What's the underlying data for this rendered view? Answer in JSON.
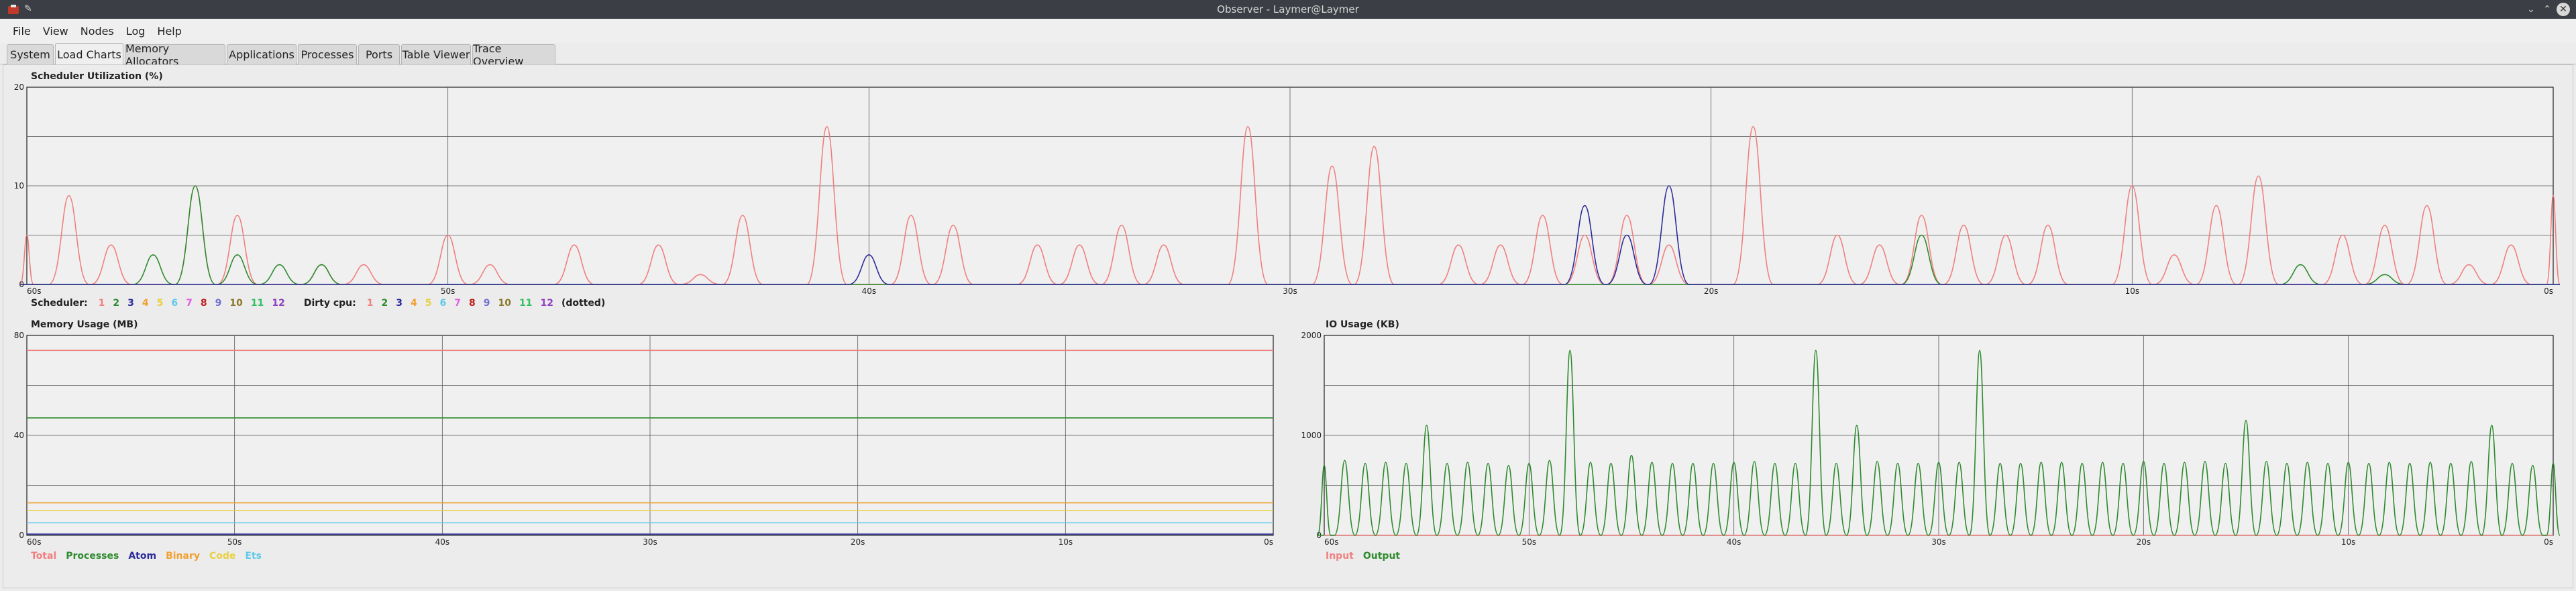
{
  "window": {
    "title": "Observer - Laymer@Laymer"
  },
  "menu": [
    "File",
    "View",
    "Nodes",
    "Log",
    "Help"
  ],
  "tabs": [
    "System",
    "Load Charts",
    "Memory Allocators",
    "Applications",
    "Processes",
    "Ports",
    "Table Viewer",
    "Trace Overview"
  ],
  "active_tab": "Load Charts",
  "scheduler_legend": {
    "label": "Scheduler:",
    "items": [
      {
        "n": "1",
        "color": "#f08080"
      },
      {
        "n": "2",
        "color": "#2e8b2e"
      },
      {
        "n": "3",
        "color": "#2b2b9a"
      },
      {
        "n": "4",
        "color": "#f0a030"
      },
      {
        "n": "5",
        "color": "#e8d040"
      },
      {
        "n": "6",
        "color": "#60c8e8"
      },
      {
        "n": "7",
        "color": "#e060e0"
      },
      {
        "n": "8",
        "color": "#c02020"
      },
      {
        "n": "9",
        "color": "#7070d0"
      },
      {
        "n": "10",
        "color": "#8c7a2a"
      },
      {
        "n": "11",
        "color": "#30c060"
      },
      {
        "n": "12",
        "color": "#9040c0"
      }
    ],
    "dirty_label": "Dirty cpu:",
    "dirty_items": [
      {
        "n": "1",
        "color": "#f08080"
      },
      {
        "n": "2",
        "color": "#2e8b2e"
      },
      {
        "n": "3",
        "color": "#2b2b9a"
      },
      {
        "n": "4",
        "color": "#f0a030"
      },
      {
        "n": "5",
        "color": "#e8d040"
      },
      {
        "n": "6",
        "color": "#60c8e8"
      },
      {
        "n": "7",
        "color": "#e060e0"
      },
      {
        "n": "8",
        "color": "#c02020"
      },
      {
        "n": "9",
        "color": "#7070d0"
      },
      {
        "n": "10",
        "color": "#8c7a2a"
      },
      {
        "n": "11",
        "color": "#30c060"
      },
      {
        "n": "12",
        "color": "#9040c0"
      }
    ],
    "dotted_note": "(dotted)"
  },
  "memory_legend": [
    {
      "label": "Total",
      "color": "#f08080"
    },
    {
      "label": "Processes",
      "color": "#2e8b2e"
    },
    {
      "label": "Atom",
      "color": "#2b2b9a"
    },
    {
      "label": "Binary",
      "color": "#f0a030"
    },
    {
      "label": "Code",
      "color": "#e8d040"
    },
    {
      "label": "Ets",
      "color": "#60c8e8"
    }
  ],
  "io_legend": [
    {
      "label": "Input",
      "color": "#f08080"
    },
    {
      "label": "Output",
      "color": "#2e8b2e"
    }
  ],
  "chart_data": [
    {
      "type": "line",
      "title": "Scheduler Utilization (%)",
      "ylim": [
        0,
        20
      ],
      "yticks": [
        "20",
        "10",
        "0"
      ],
      "xticks": [
        "60s",
        "50s",
        "40s",
        "30s",
        "20s",
        "10s",
        "0s"
      ],
      "grid": true,
      "series": [
        {
          "name": "1",
          "color": "#f08080",
          "x": [
            60,
            59,
            58,
            57,
            56,
            55,
            54,
            53,
            52,
            51,
            50,
            49,
            48,
            47,
            46,
            45,
            44,
            43,
            42,
            41,
            40,
            39,
            38,
            37,
            36,
            35,
            34,
            33,
            32,
            31,
            30,
            29,
            28,
            27,
            26,
            25,
            24,
            23,
            22,
            21,
            20,
            19,
            18,
            17,
            16,
            15,
            14,
            13,
            12,
            11,
            10,
            9,
            8,
            7,
            6,
            5,
            4,
            3,
            2,
            1,
            0
          ],
          "y": [
            5,
            9,
            4,
            0,
            10,
            7,
            0,
            2,
            2,
            0,
            5,
            2,
            0,
            4,
            0,
            4,
            1,
            7,
            0,
            16,
            0,
            7,
            6,
            0,
            4,
            4,
            6,
            4,
            0,
            16,
            0,
            12,
            14,
            0,
            4,
            4,
            7,
            5,
            7,
            4,
            0,
            16,
            0,
            5,
            4,
            7,
            6,
            5,
            6,
            0,
            10,
            3,
            8,
            11,
            0,
            5,
            6,
            8,
            2,
            4,
            9
          ]
        },
        {
          "name": "2",
          "color": "#2e8b2e",
          "x": [
            60,
            57,
            56,
            55,
            54,
            53,
            52,
            50,
            45,
            44,
            40,
            20,
            15,
            10,
            6,
            5,
            4,
            0
          ],
          "y": [
            0,
            3,
            10,
            3,
            2,
            2,
            0,
            0,
            0,
            0,
            0,
            0,
            5,
            0,
            2,
            0,
            1,
            0
          ]
        },
        {
          "name": "3",
          "color": "#2b2b9a",
          "x": [
            60,
            50,
            40,
            25,
            24,
            23,
            22,
            21,
            20,
            10,
            0
          ],
          "y": [
            0,
            0,
            3,
            0,
            0,
            8,
            5,
            10,
            0,
            0,
            0
          ]
        }
      ]
    },
    {
      "type": "line",
      "title": "Memory Usage (MB)",
      "ylim": [
        0,
        80
      ],
      "yticks": [
        "80",
        "40",
        "0"
      ],
      "xticks": [
        "60s",
        "50s",
        "40s",
        "30s",
        "20s",
        "10s",
        "0s"
      ],
      "grid": true,
      "series": [
        {
          "name": "Total",
          "color": "#f08080",
          "x": [
            60,
            0
          ],
          "y": [
            74,
            74
          ]
        },
        {
          "name": "Processes",
          "color": "#2e8b2e",
          "x": [
            60,
            0
          ],
          "y": [
            47,
            47
          ]
        },
        {
          "name": "Binary",
          "color": "#f0a030",
          "x": [
            60,
            0
          ],
          "y": [
            13,
            13
          ]
        },
        {
          "name": "Code",
          "color": "#e8d040",
          "x": [
            60,
            0
          ],
          "y": [
            10,
            10
          ]
        },
        {
          "name": "Ets",
          "color": "#60c8e8",
          "x": [
            60,
            0
          ],
          "y": [
            5,
            5
          ]
        },
        {
          "name": "Atom",
          "color": "#2b2b9a",
          "x": [
            60,
            0
          ],
          "y": [
            0.5,
            0.5
          ]
        }
      ]
    },
    {
      "type": "line",
      "title": "IO Usage (KB)",
      "ylim": [
        0,
        2000
      ],
      "yticks": [
        "2000",
        "1000",
        "0"
      ],
      "xticks": [
        "60s",
        "50s",
        "40s",
        "30s",
        "20s",
        "10s",
        "0s"
      ],
      "grid": true,
      "series": [
        {
          "name": "Input",
          "color": "#f08080",
          "x": [
            60,
            0
          ],
          "y": [
            0,
            0
          ]
        },
        {
          "name": "Output",
          "color": "#2e8b2e",
          "x": [
            60,
            59,
            58,
            57,
            56,
            55,
            54,
            53,
            52,
            51,
            50,
            49,
            48,
            47,
            46,
            45,
            44,
            43,
            42,
            41,
            40,
            39,
            38,
            37,
            36,
            35,
            34,
            33,
            32,
            31,
            30,
            29,
            28,
            27,
            26,
            25,
            24,
            23,
            22,
            21,
            20,
            19,
            18,
            17,
            16,
            15,
            14,
            13,
            12,
            11,
            10,
            9,
            8,
            7,
            6,
            5,
            4,
            3,
            2,
            1,
            0
          ],
          "y": [
            700,
            750,
            720,
            730,
            720,
            1100,
            720,
            730,
            720,
            700,
            720,
            750,
            1850,
            730,
            720,
            800,
            730,
            720,
            720,
            720,
            730,
            740,
            720,
            720,
            1850,
            720,
            1100,
            740,
            720,
            720,
            730,
            730,
            1850,
            720,
            720,
            730,
            730,
            720,
            730,
            720,
            740,
            720,
            730,
            740,
            720,
            1150,
            740,
            720,
            730,
            720,
            730,
            720,
            730,
            720,
            730,
            720,
            740,
            1100,
            720,
            700,
            720
          ]
        }
      ]
    }
  ]
}
